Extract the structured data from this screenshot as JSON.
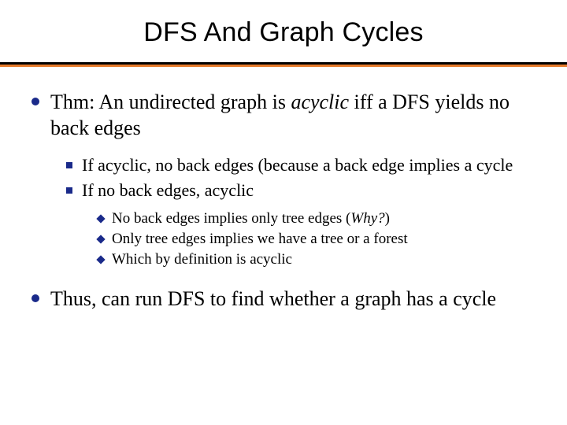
{
  "title": "DFS And Graph Cycles",
  "colors": {
    "rule_top": "#000000",
    "rule_bottom": "#e77c2d",
    "bullet": "#1a2a8a",
    "text": "#000000",
    "background": "#ffffff"
  },
  "typography": {
    "title_font": "Arial",
    "title_size_pt": 26,
    "body_font": "Times New Roman",
    "l1_size_pt": 20,
    "l2_size_pt": 17,
    "l3_size_pt": 14
  },
  "bullets": {
    "l1": [
      {
        "pre": "Thm: An undirected graph is ",
        "italic": "acyclic",
        "post": " iff a DFS yields no back edges"
      },
      {
        "pre": "Thus, can run DFS to find whether a graph has a cycle",
        "italic": "",
        "post": ""
      }
    ],
    "l2": [
      {
        "text": "If acyclic, no back edges (because a back edge implies a cycle"
      },
      {
        "text": "If no back edges, acyclic"
      }
    ],
    "l3": [
      {
        "pre": "No back edges implies only tree edges (",
        "italic": "Why?",
        "post": ")"
      },
      {
        "pre": "Only tree edges implies we have a tree or a forest",
        "italic": "",
        "post": ""
      },
      {
        "pre": "Which by definition is acyclic",
        "italic": "",
        "post": ""
      }
    ]
  }
}
